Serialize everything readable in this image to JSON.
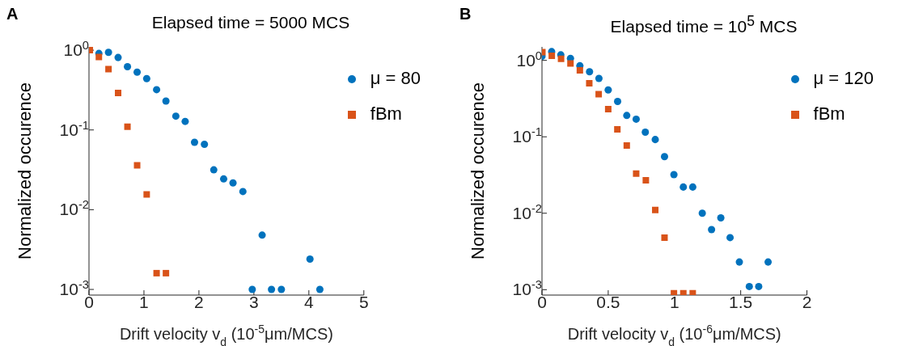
{
  "chart_data": [
    {
      "type": "scatter",
      "title": "Elapsed time = 5000 MCS",
      "xlabel": "Drift velocity v$_{d}$ (10$^{-5}$μm/MCS)",
      "ylabel": "Normalized occurence",
      "annotations": [
        "A"
      ],
      "log": "y",
      "xlim": [
        0,
        5
      ],
      "xticks": [
        0,
        1,
        2,
        3,
        4,
        5
      ],
      "ylim": [
        0.00085,
        1.1
      ],
      "yticks": [
        {
          "value": 1,
          "label": "10$^{0}$"
        },
        {
          "value": 0.1,
          "label": "10$^{-1}$"
        },
        {
          "value": 0.01,
          "label": "10$^{-2}$"
        },
        {
          "value": 0.001,
          "label": "10$^{-3}$"
        }
      ],
      "grid": false,
      "legend": "top right",
      "series": [
        {
          "name": "μ = 80",
          "color": "#0072bd",
          "marker": "circle",
          "x": [
            0.18,
            0.355,
            0.53,
            0.7,
            0.876,
            1.05,
            1.23,
            1.4,
            1.58,
            1.75,
            1.92,
            2.1,
            2.27,
            2.45,
            2.62,
            2.8,
            2.97,
            3.15,
            3.32,
            3.5,
            4.02,
            4.2
          ],
          "values": [
            0.91,
            0.94,
            0.81,
            0.62,
            0.53,
            0.44,
            0.32,
            0.23,
            0.149,
            0.128,
            0.07,
            0.066,
            0.0316,
            0.0243,
            0.0217,
            0.0169,
            0.001,
            0.0048,
            0.001,
            0.001,
            0.0024,
            0.001
          ]
        },
        {
          "name": "fBm",
          "color": "#d95319",
          "marker": "square",
          "x": [
            0.015,
            0.18,
            0.355,
            0.53,
            0.7,
            0.876,
            1.05,
            1.23,
            1.4
          ],
          "values": [
            1.0,
            0.82,
            0.58,
            0.29,
            0.11,
            0.036,
            0.0155,
            0.0016,
            0.0016
          ]
        }
      ]
    },
    {
      "type": "scatter",
      "title": "Elapsed time = 10$^{5}$ MCS",
      "xlabel": "Drift velocity v$_{d}$ (10$^{-6}$μm/MCS)",
      "ylabel": "Normalized occurence",
      "annotations": [
        "B"
      ],
      "log": "y",
      "xlim": [
        0,
        2
      ],
      "xticks": [
        0,
        0.5,
        1,
        1.5,
        2
      ],
      "ylim": [
        0.00085,
        1.5
      ],
      "yticks": [
        {
          "value": 1,
          "label": "10$^{0}$"
        },
        {
          "value": 0.1,
          "label": "10$^{-1}$"
        },
        {
          "value": 0.01,
          "label": "10$^{-2}$"
        },
        {
          "value": 0.001,
          "label": "10$^{-3}$"
        }
      ],
      "grid": false,
      "legend": "top right",
      "series": [
        {
          "name": "μ = 120",
          "color": "#0072bd",
          "marker": "circle",
          "x": [
            0,
            0.073,
            0.142,
            0.215,
            0.286,
            0.359,
            0.43,
            0.5,
            0.571,
            0.64,
            0.711,
            0.78,
            0.855,
            0.925,
            0.996,
            1.067,
            1.138,
            1.21,
            1.28,
            1.35,
            1.42,
            1.49,
            1.565,
            1.636,
            1.707
          ],
          "values": [
            1.13,
            1.3,
            1.18,
            1.06,
            0.85,
            0.71,
            0.58,
            0.41,
            0.29,
            0.19,
            0.17,
            0.115,
            0.092,
            0.055,
            0.032,
            0.022,
            0.022,
            0.01,
            0.0061,
            0.0087,
            0.0048,
            0.0023,
            0.0011,
            0.0011,
            0.0023
          ]
        },
        {
          "name": "fBm",
          "color": "#d95319",
          "marker": "square",
          "x": [
            0.003,
            0.074,
            0.144,
            0.215,
            0.286,
            0.357,
            0.428,
            0.5,
            0.569,
            0.64,
            0.711,
            0.784,
            0.855,
            0.925,
            0.996,
            1.067,
            1.138
          ],
          "values": [
            1.28,
            1.15,
            1.05,
            0.91,
            0.74,
            0.5,
            0.36,
            0.23,
            0.125,
            0.077,
            0.033,
            0.027,
            0.011,
            0.0048,
            0.0009,
            0.0009,
            0.0009
          ]
        }
      ]
    }
  ]
}
